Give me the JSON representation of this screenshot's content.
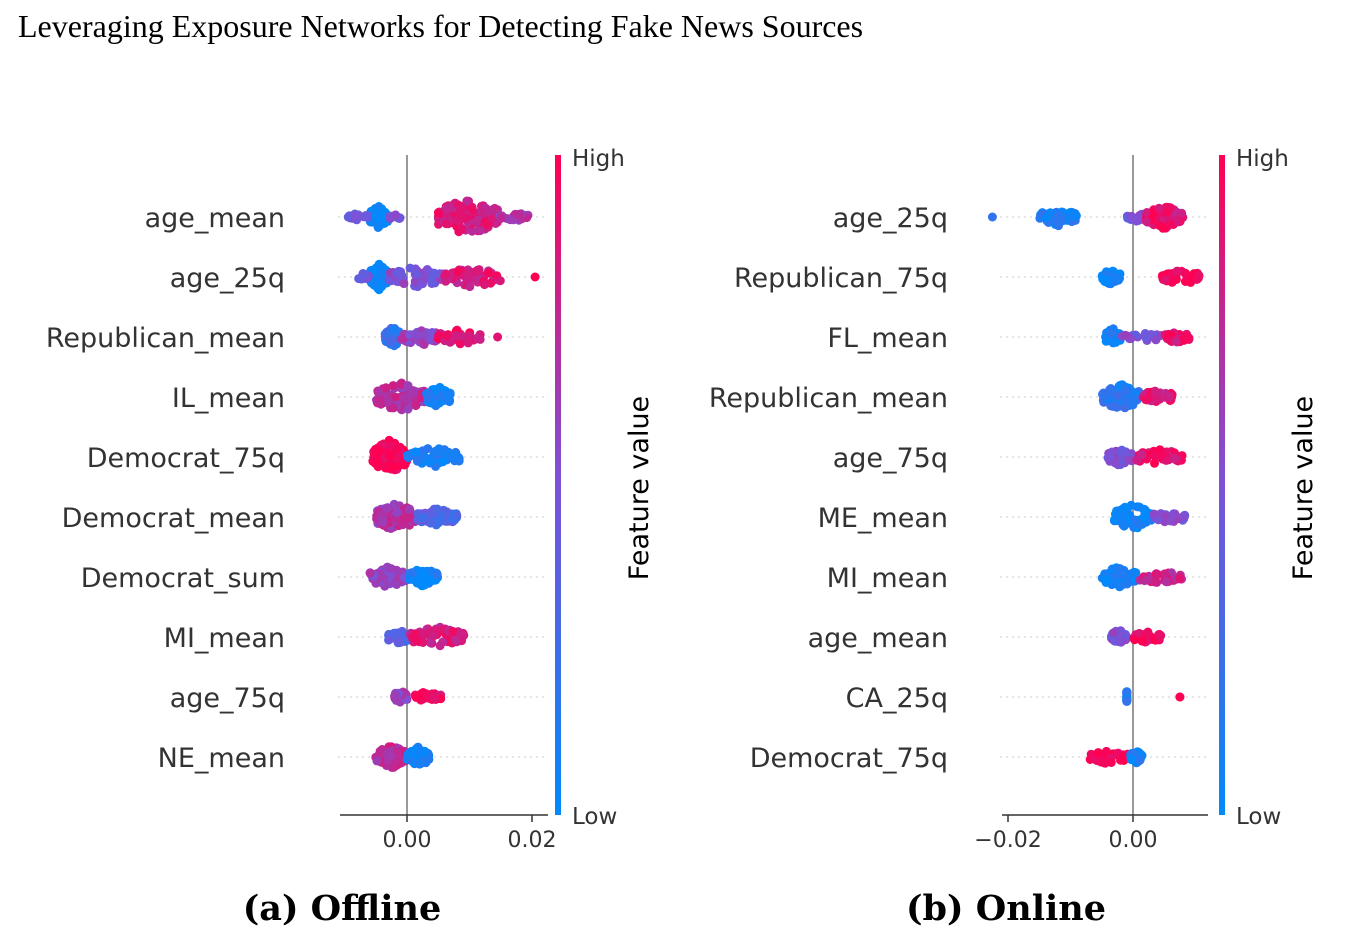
{
  "page": {
    "title": "Leveraging Exposure Networks for Detecting Fake News Sources",
    "colors": {
      "low": "#008afb",
      "mid": "#7c52d8",
      "high": "#ff0052",
      "zero_line": "#999999",
      "axis": "#333333"
    }
  },
  "colorbar": {
    "high_label": "High",
    "low_label": "Low",
    "title": "Feature value"
  },
  "chart_data": [
    {
      "type": "scatter",
      "subtype": "beeswarm",
      "caption": "(a) Offline",
      "xticks": [
        0.0,
        0.02
      ],
      "xtick_labels": [
        "0.00",
        "0.02"
      ],
      "xlim": [
        -0.0105,
        0.021
      ],
      "features": [
        {
          "name": "age_mean",
          "groups": [
            {
              "c": 0,
              "s": -0.006,
              "e": -0.003,
              "n": 70
            },
            {
              "c": 0.45,
              "s": -0.0095,
              "e": -0.006,
              "n": 14
            },
            {
              "c": 0.5,
              "s": -0.003,
              "e": -0.001,
              "n": 8
            },
            {
              "c": 0.85,
              "s": 0.005,
              "e": 0.0145,
              "n": 120
            },
            {
              "c": 0.65,
              "s": 0.0145,
              "e": 0.0195,
              "n": 20
            }
          ]
        },
        {
          "name": "age_25q",
          "groups": [
            {
              "c": 0,
              "s": -0.006,
              "e": -0.003,
              "n": 80
            },
            {
              "c": 0.45,
              "s": -0.008,
              "e": -0.006,
              "n": 12
            },
            {
              "c": 0.5,
              "s": -0.003,
              "e": 0.006,
              "n": 60
            },
            {
              "c": 0.85,
              "s": 0.006,
              "e": 0.015,
              "n": 60
            },
            {
              "c": 1,
              "s": 0.0205,
              "e": 0.0205,
              "n": 1
            }
          ]
        },
        {
          "name": "Republican_mean",
          "groups": [
            {
              "c": 0.2,
              "s": -0.0035,
              "e": -0.001,
              "n": 60
            },
            {
              "c": 0.6,
              "s": -0.001,
              "e": 0.005,
              "n": 50
            },
            {
              "c": 0.9,
              "s": 0.005,
              "e": 0.012,
              "n": 40
            },
            {
              "c": 1,
              "s": 0.0145,
              "e": 0.0145,
              "n": 1
            }
          ]
        },
        {
          "name": "IL_mean",
          "groups": [
            {
              "c": 0.7,
              "s": -0.005,
              "e": 0.003,
              "n": 90
            },
            {
              "c": 0.05,
              "s": 0.003,
              "e": 0.007,
              "n": 60
            }
          ]
        },
        {
          "name": "Democrat_75q",
          "groups": [
            {
              "c": 1,
              "s": -0.0055,
              "e": 0.0,
              "n": 110
            },
            {
              "c": 0.1,
              "s": 0.0,
              "e": 0.0085,
              "n": 60
            }
          ]
        },
        {
          "name": "Democrat_mean",
          "groups": [
            {
              "c": 0.7,
              "s": -0.005,
              "e": 0.0015,
              "n": 90
            },
            {
              "c": 0.35,
              "s": 0.0015,
              "e": 0.008,
              "n": 50
            }
          ]
        },
        {
          "name": "Democrat_sum",
          "groups": [
            {
              "c": 0.6,
              "s": -0.006,
              "e": 0.0,
              "n": 60
            },
            {
              "c": 0.05,
              "s": 0.0,
              "e": 0.005,
              "n": 50
            }
          ]
        },
        {
          "name": "MI_mean",
          "groups": [
            {
              "c": 0.3,
              "s": -0.003,
              "e": 0.0005,
              "n": 40
            },
            {
              "c": 0.85,
              "s": 0.0005,
              "e": 0.0095,
              "n": 60
            }
          ]
        },
        {
          "name": "age_75q",
          "groups": [
            {
              "c": 0.6,
              "s": -0.002,
              "e": 0.0,
              "n": 40
            },
            {
              "c": 0.95,
              "s": 0.001,
              "e": 0.0055,
              "n": 25
            }
          ]
        },
        {
          "name": "NE_mean",
          "groups": [
            {
              "c": 0.75,
              "s": -0.005,
              "e": 0.0,
              "n": 70
            },
            {
              "c": 0.05,
              "s": 0.0,
              "e": 0.0035,
              "n": 60
            }
          ]
        }
      ]
    },
    {
      "type": "scatter",
      "subtype": "beeswarm",
      "caption": "(b) Online",
      "xticks": [
        -0.02,
        0.0
      ],
      "xtick_labels": [
        "−0.02",
        "0.00"
      ],
      "xlim": [
        -0.0205,
        0.0115
      ],
      "features": [
        {
          "name": "age_25q",
          "groups": [
            {
              "c": 0.1,
              "s": -0.0225,
              "e": -0.0225,
              "n": 1
            },
            {
              "c": 0.1,
              "s": -0.015,
              "e": -0.009,
              "n": 50
            },
            {
              "c": 0.5,
              "s": -0.001,
              "e": 0.002,
              "n": 20
            },
            {
              "c": 0.9,
              "s": 0.002,
              "e": 0.008,
              "n": 70
            }
          ]
        },
        {
          "name": "Republican_75q",
          "groups": [
            {
              "c": 0.05,
              "s": -0.005,
              "e": -0.002,
              "n": 40
            },
            {
              "c": 1,
              "s": 0.0045,
              "e": 0.011,
              "n": 40
            }
          ]
        },
        {
          "name": "FL_mean",
          "groups": [
            {
              "c": 0.05,
              "s": -0.0045,
              "e": -0.002,
              "n": 50
            },
            {
              "c": 0.5,
              "s": -0.002,
              "e": 0.005,
              "n": 20
            },
            {
              "c": 0.9,
              "s": 0.005,
              "e": 0.009,
              "n": 30
            }
          ]
        },
        {
          "name": "Republican_mean",
          "groups": [
            {
              "c": 0.15,
              "s": -0.005,
              "e": 0.001,
              "n": 80
            },
            {
              "c": 0.85,
              "s": 0.0015,
              "e": 0.0065,
              "n": 40
            }
          ]
        },
        {
          "name": "age_75q",
          "groups": [
            {
              "c": 0.5,
              "s": -0.004,
              "e": 0.0,
              "n": 50
            },
            {
              "c": 0.9,
              "s": 0.0,
              "e": 0.0085,
              "n": 40
            }
          ]
        },
        {
          "name": "ME_mean",
          "groups": [
            {
              "c": 0.05,
              "s": -0.003,
              "e": 0.003,
              "n": 80
            },
            {
              "c": 0.5,
              "s": 0.003,
              "e": 0.0085,
              "n": 30
            }
          ]
        },
        {
          "name": "MI_mean",
          "groups": [
            {
              "c": 0.05,
              "s": -0.005,
              "e": 0.0005,
              "n": 60
            },
            {
              "c": 0.8,
              "s": 0.0005,
              "e": 0.008,
              "n": 30
            }
          ]
        },
        {
          "name": "age_mean",
          "groups": [
            {
              "c": 0.5,
              "s": -0.0035,
              "e": -0.001,
              "n": 40
            },
            {
              "c": 0.95,
              "s": 0.0,
              "e": 0.0045,
              "n": 30
            }
          ]
        },
        {
          "name": "CA_25q",
          "groups": [
            {
              "c": 0.1,
              "s": -0.001,
              "e": -0.001,
              "n": 25
            },
            {
              "c": 1,
              "s": 0.0075,
              "e": 0.0075,
              "n": 2
            }
          ]
        },
        {
          "name": "Democrat_75q",
          "groups": [
            {
              "c": 1,
              "s": -0.007,
              "e": -0.0005,
              "n": 40
            },
            {
              "c": 0.05,
              "s": -0.0005,
              "e": 0.0015,
              "n": 30
            }
          ]
        }
      ]
    }
  ]
}
